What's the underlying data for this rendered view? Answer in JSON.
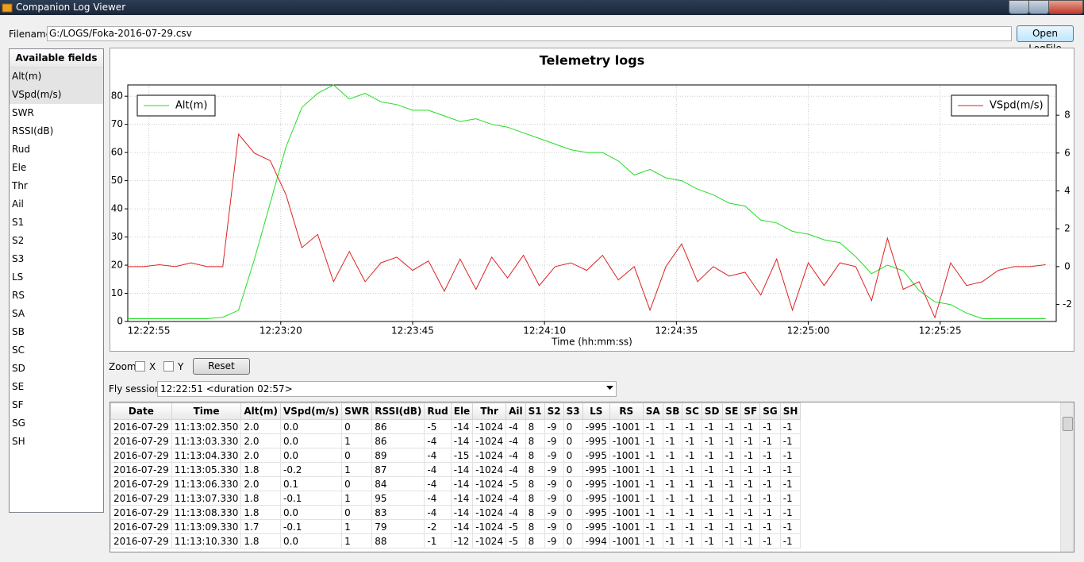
{
  "window": {
    "title": "Companion Log Viewer"
  },
  "file": {
    "label": "Filename",
    "path": "G:/LOGS/Foka-2016-07-29.csv",
    "button": "Open LogFile"
  },
  "fields": {
    "title": "Available fields",
    "items": [
      "Alt(m)",
      "VSpd(m/s)",
      "SWR",
      "RSSI(dB)",
      "Rud",
      "Ele",
      "Thr",
      "Ail",
      "S1",
      "S2",
      "S3",
      "LS",
      "RS",
      "SA",
      "SB",
      "SC",
      "SD",
      "SE",
      "SF",
      "SG",
      "SH"
    ]
  },
  "chart_data": {
    "type": "line",
    "title": "Telemetry logs",
    "x_label": "Time (hh:mm:ss)",
    "x": [
      "12:22:51",
      "12:22:54",
      "12:22:57",
      "12:23:00",
      "12:23:03",
      "12:23:06",
      "12:23:09",
      "12:23:12",
      "12:23:15",
      "12:23:18",
      "12:23:21",
      "12:23:24",
      "12:23:27",
      "12:23:30",
      "12:23:33",
      "12:23:36",
      "12:23:39",
      "12:23:42",
      "12:23:45",
      "12:23:48",
      "12:23:51",
      "12:23:54",
      "12:23:57",
      "12:24:00",
      "12:24:03",
      "12:24:06",
      "12:24:09",
      "12:24:12",
      "12:24:15",
      "12:24:18",
      "12:24:21",
      "12:24:24",
      "12:24:27",
      "12:24:30",
      "12:24:33",
      "12:24:36",
      "12:24:39",
      "12:24:42",
      "12:24:45",
      "12:24:48",
      "12:24:51",
      "12:24:54",
      "12:24:57",
      "12:25:00",
      "12:25:03",
      "12:25:06",
      "12:25:09",
      "12:25:12",
      "12:25:15",
      "12:25:18",
      "12:25:21",
      "12:25:24",
      "12:25:27",
      "12:25:30",
      "12:25:33",
      "12:25:36",
      "12:25:39",
      "12:25:42",
      "12:25:45"
    ],
    "xlim": [
      "12:22:51",
      "12:25:47"
    ],
    "xticks": [
      "12:22:55",
      "12:23:20",
      "12:23:45",
      "12:24:10",
      "12:24:35",
      "12:25:00",
      "12:25:25"
    ],
    "ylim": [
      0,
      84
    ],
    "yticks": [
      0,
      10,
      20,
      30,
      40,
      50,
      60,
      70,
      80
    ],
    "y2lim": [
      -2.9,
      9.6
    ],
    "y2ticks": [
      -2,
      0,
      2,
      4,
      6,
      8
    ],
    "grid": true,
    "series": [
      {
        "name": "Alt(m)",
        "color": "#22dd22",
        "legend": "upper left",
        "values": [
          1,
          1,
          1,
          1,
          1,
          1,
          1.5,
          4,
          22,
          42,
          62,
          76,
          81,
          84,
          79,
          81,
          78,
          77,
          75,
          75,
          73,
          71,
          72,
          70,
          69,
          67,
          65,
          63,
          61,
          60,
          60,
          57,
          52,
          54,
          51,
          50,
          47,
          45,
          42,
          41,
          36,
          35,
          32,
          31,
          29,
          28,
          23,
          17,
          20,
          18,
          11,
          7,
          6,
          3,
          1,
          1,
          1,
          1,
          1
        ]
      },
      {
        "name": "VSpd(m/s)",
        "color": "#dd2222",
        "axis": "y2",
        "legend": "upper right",
        "values": [
          0,
          0,
          0.1,
          0,
          0.2,
          0,
          0,
          7.0,
          6.0,
          5.6,
          3.8,
          1.0,
          1.7,
          -0.8,
          0.8,
          -0.8,
          0.2,
          0.5,
          -0.2,
          0.3,
          -1.3,
          0.4,
          -1.2,
          0.5,
          -0.6,
          0.6,
          -1.0,
          0.0,
          0.2,
          -0.2,
          0.6,
          -0.7,
          0.0,
          -2.3,
          0.0,
          1.2,
          -0.8,
          0.0,
          -0.5,
          -0.3,
          -1.5,
          0.4,
          -2.3,
          0.2,
          -1.0,
          0.2,
          0.0,
          -1.8,
          1.5,
          -1.2,
          -0.8,
          -2.7,
          0.2,
          -1.0,
          -0.8,
          -0.2,
          0.0,
          0.0,
          0.1
        ]
      }
    ]
  },
  "zoom": {
    "label": "Zoom",
    "x": "X",
    "y": "Y",
    "reset": "Reset"
  },
  "sessions": {
    "label": "Fly sessions",
    "value": "12:22:51 <duration 02:57>"
  },
  "table": {
    "headers": [
      "Date",
      "Time",
      "Alt(m)",
      "VSpd(m/s)",
      "SWR",
      "RSSI(dB)",
      "Rud",
      "Ele",
      "Thr",
      "Ail",
      "S1",
      "S2",
      "S3",
      "LS",
      "RS",
      "SA",
      "SB",
      "SC",
      "SD",
      "SE",
      "SF",
      "SG",
      "SH"
    ],
    "rows": [
      [
        "2016-07-29",
        "11:13:02.350",
        "2.0",
        "0.0",
        "0",
        "86",
        "-5",
        "-14",
        "-1024",
        "-4",
        "8",
        "-9",
        "0",
        "-995",
        "-1001",
        "-1",
        "-1",
        "-1",
        "-1",
        "-1",
        "-1",
        "-1",
        "-1"
      ],
      [
        "2016-07-29",
        "11:13:03.330",
        "2.0",
        "0.0",
        "1",
        "86",
        "-4",
        "-14",
        "-1024",
        "-4",
        "8",
        "-9",
        "0",
        "-995",
        "-1001",
        "-1",
        "-1",
        "-1",
        "-1",
        "-1",
        "-1",
        "-1",
        "-1"
      ],
      [
        "2016-07-29",
        "11:13:04.330",
        "2.0",
        "0.0",
        "0",
        "89",
        "-4",
        "-15",
        "-1024",
        "-4",
        "8",
        "-9",
        "0",
        "-995",
        "-1001",
        "-1",
        "-1",
        "-1",
        "-1",
        "-1",
        "-1",
        "-1",
        "-1"
      ],
      [
        "2016-07-29",
        "11:13:05.330",
        "1.8",
        "-0.2",
        "1",
        "87",
        "-4",
        "-14",
        "-1024",
        "-4",
        "8",
        "-9",
        "0",
        "-995",
        "-1001",
        "-1",
        "-1",
        "-1",
        "-1",
        "-1",
        "-1",
        "-1",
        "-1"
      ],
      [
        "2016-07-29",
        "11:13:06.330",
        "2.0",
        "0.1",
        "0",
        "84",
        "-4",
        "-14",
        "-1024",
        "-5",
        "8",
        "-9",
        "0",
        "-995",
        "-1001",
        "-1",
        "-1",
        "-1",
        "-1",
        "-1",
        "-1",
        "-1",
        "-1"
      ],
      [
        "2016-07-29",
        "11:13:07.330",
        "1.8",
        "-0.1",
        "1",
        "95",
        "-4",
        "-14",
        "-1024",
        "-4",
        "8",
        "-9",
        "0",
        "-995",
        "-1001",
        "-1",
        "-1",
        "-1",
        "-1",
        "-1",
        "-1",
        "-1",
        "-1"
      ],
      [
        "2016-07-29",
        "11:13:08.330",
        "1.8",
        "0.0",
        "0",
        "83",
        "-4",
        "-14",
        "-1024",
        "-4",
        "8",
        "-9",
        "0",
        "-995",
        "-1001",
        "-1",
        "-1",
        "-1",
        "-1",
        "-1",
        "-1",
        "-1",
        "-1"
      ],
      [
        "2016-07-29",
        "11:13:09.330",
        "1.7",
        "-0.1",
        "1",
        "79",
        "-2",
        "-14",
        "-1024",
        "-5",
        "8",
        "-9",
        "0",
        "-995",
        "-1001",
        "-1",
        "-1",
        "-1",
        "-1",
        "-1",
        "-1",
        "-1",
        "-1"
      ],
      [
        "2016-07-29",
        "11:13:10.330",
        "1.8",
        "0.0",
        "1",
        "88",
        "-1",
        "-12",
        "-1024",
        "-5",
        "8",
        "-9",
        "0",
        "-994",
        "-1001",
        "-1",
        "-1",
        "-1",
        "-1",
        "-1",
        "-1",
        "-1",
        "-1"
      ]
    ]
  }
}
